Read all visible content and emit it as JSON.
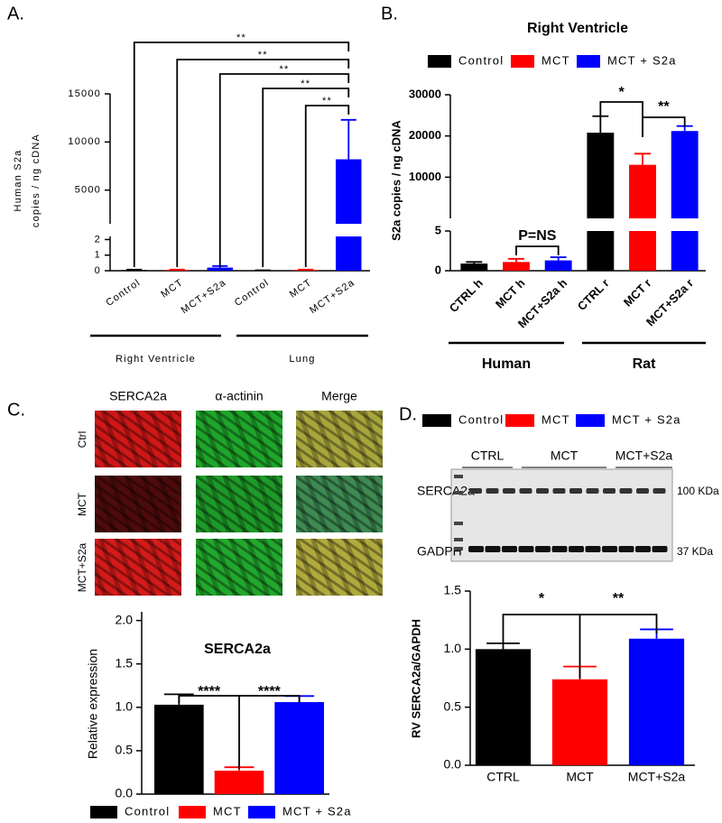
{
  "chart_data": [
    {
      "type": "bar",
      "panel_label": "A.",
      "ylabel": [
        "Human S2a",
        "copies / ng cDNA"
      ],
      "categories": [
        "Control",
        "MCT",
        "MCT+S2a",
        "Control",
        "MCT",
        "MCT+S2a"
      ],
      "values": [
        0.05,
        0.05,
        0.2,
        0.02,
        0.05,
        8200
      ],
      "errors": [
        0.02,
        0.02,
        0.1,
        0.01,
        0.02,
        4100
      ],
      "colors": [
        "#000000",
        "#ff0000",
        "#0000ff",
        "#000000",
        "#ff0000",
        "#0000ff"
      ],
      "axis_segments": [
        {
          "ylim": [
            0,
            2.2
          ],
          "yticks": [
            0,
            1,
            2
          ]
        },
        {
          "ylim": [
            1500,
            15000
          ],
          "yticks": [
            5000,
            10000,
            15000
          ]
        }
      ],
      "groups": [
        "Right Ventricle",
        "Lung"
      ],
      "annotations": [
        "**",
        "**",
        "**",
        "**",
        "**"
      ]
    },
    {
      "type": "bar",
      "panel_label": "B.",
      "title": "Right Ventricle",
      "legend": [
        {
          "name": "Control",
          "color": "#000000"
        },
        {
          "name": "MCT",
          "color": "#ff0000"
        },
        {
          "name": "MCT + S2a",
          "color": "#0000ff"
        }
      ],
      "ylabel": "S2a copies / ng cDNA",
      "categories": [
        "CTRL h",
        "MCT h",
        "MCT+S2a h",
        "CTRL r",
        "MCT r",
        "MCT+S2a r"
      ],
      "values": [
        0.9,
        1.1,
        1.3,
        20800,
        13000,
        21200
      ],
      "errors": [
        0.2,
        0.4,
        0.4,
        4000,
        2700,
        1200
      ],
      "colors": [
        "#000000",
        "#ff0000",
        "#0000ff",
        "#000000",
        "#ff0000",
        "#0000ff"
      ],
      "axis_segments": [
        {
          "ylim": [
            0,
            5
          ],
          "yticks": [
            0,
            5
          ]
        },
        {
          "ylim": [
            0,
            30000
          ],
          "yticks": [
            10000,
            20000,
            30000
          ]
        }
      ],
      "groups": [
        "Human",
        "Rat"
      ],
      "annotations": [
        "P=NS",
        "*",
        "**"
      ]
    },
    {
      "type": "bar",
      "panel_label": "C.",
      "image_columns": [
        "SERCA2a",
        "α-actinin",
        "Merge"
      ],
      "image_rows": [
        "Ctrl",
        "MCT",
        "MCT+S2a"
      ],
      "title": "SERCA2a",
      "ylabel": "Relative expression",
      "legend": [
        {
          "name": "Control",
          "color": "#000000"
        },
        {
          "name": "MCT",
          "color": "#ff0000"
        },
        {
          "name": "MCT + S2a",
          "color": "#0000ff"
        }
      ],
      "values": [
        1.03,
        0.27,
        1.06
      ],
      "errors": [
        0.12,
        0.04,
        0.07
      ],
      "colors": [
        "#000000",
        "#ff0000",
        "#0000ff"
      ],
      "ylim": [
        0,
        2.1
      ],
      "yticks": [
        {
          "value": 0,
          "label": "0.0"
        },
        {
          "value": 0.5,
          "label": "0.5"
        },
        {
          "value": 1,
          "label": "1.0"
        },
        {
          "value": 1.5,
          "label": "1.5"
        },
        {
          "value": 2,
          "label": "2.0"
        }
      ],
      "annotations": [
        "****",
        "****"
      ]
    },
    {
      "type": "bar",
      "panel_label": "D.",
      "legend": [
        {
          "name": "Control",
          "color": "#000000"
        },
        {
          "name": "MCT",
          "color": "#ff0000"
        },
        {
          "name": "MCT + S2a",
          "color": "#0000ff"
        }
      ],
      "blot": {
        "groups": [
          "CTRL",
          "MCT",
          "MCT+S2a"
        ],
        "bands": [
          "SERCA2a",
          "GADPH"
        ],
        "sizes": [
          "100 KDa",
          "37 KDa"
        ]
      },
      "ylabel": "RV SERCA2a/GAPDH",
      "categories": [
        "CTRL",
        "MCT",
        "MCT+S2a"
      ],
      "values": [
        1.0,
        0.74,
        1.09
      ],
      "errors": [
        0.05,
        0.11,
        0.08
      ],
      "colors": [
        "#000000",
        "#ff0000",
        "#0000ff"
      ],
      "ylim": [
        0,
        1.5
      ],
      "yticks": [
        {
          "value": 0,
          "label": "0.0"
        },
        {
          "value": 0.5,
          "label": "0.5"
        },
        {
          "value": 1,
          "label": "1.0"
        },
        {
          "value": 1.5,
          "label": "1.5"
        }
      ],
      "annotations": [
        "*",
        "**"
      ]
    }
  ]
}
